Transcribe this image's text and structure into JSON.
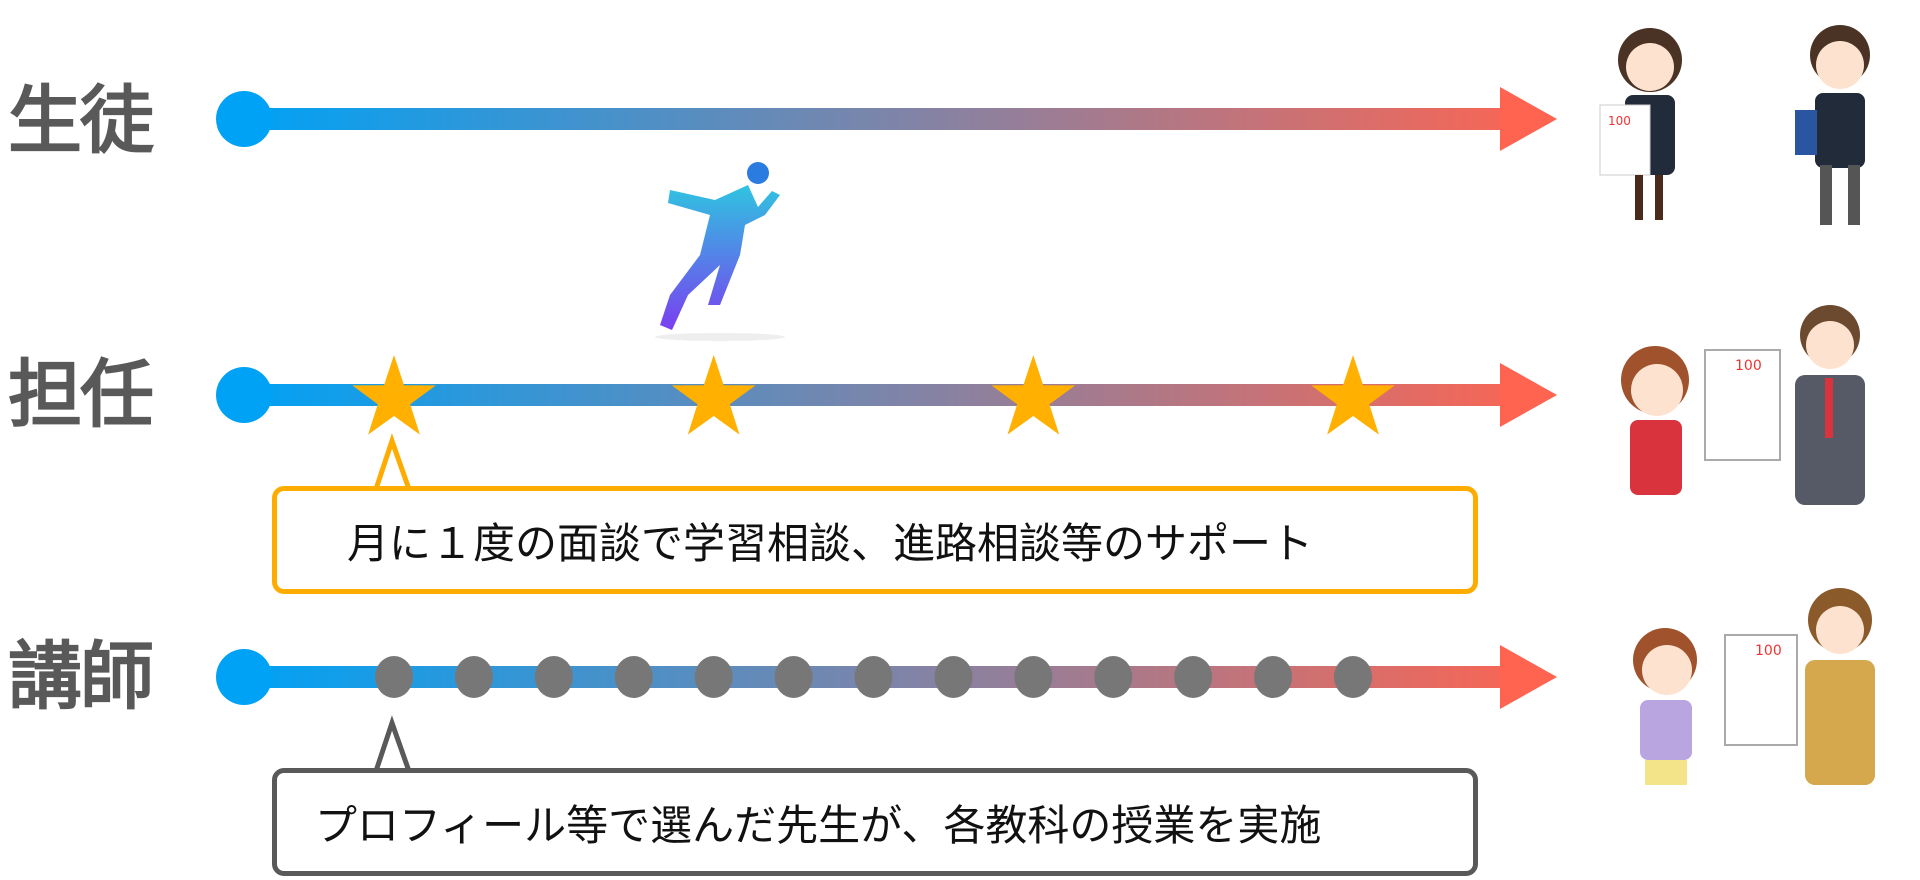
{
  "rows": [
    {
      "label": "生徒",
      "marker": "none"
    },
    {
      "label": "担任",
      "marker": "star",
      "marker_count": 4
    },
    {
      "label": "講師",
      "marker": "dot",
      "marker_count": 13
    }
  ],
  "callouts": {
    "homeroom": "月に１度の面談で学習相談、進路相談等のサポート",
    "instructor": "プロフィール等で選んだ先生が、各教科の授業を実施"
  },
  "colors": {
    "gradient_start": "#00a2f5",
    "gradient_end": "#ff6450",
    "star": "#ffb000",
    "dot": "#777777",
    "label": "#595959",
    "callout_homeroom_border": "#ffac00",
    "callout_instructor_border": "#595959"
  },
  "illustrations": [
    "runner-silhouette",
    "students-with-test-and-acceptance",
    "boy-and-teacher-celebrating",
    "girl-and-teacher-celebrating"
  ]
}
